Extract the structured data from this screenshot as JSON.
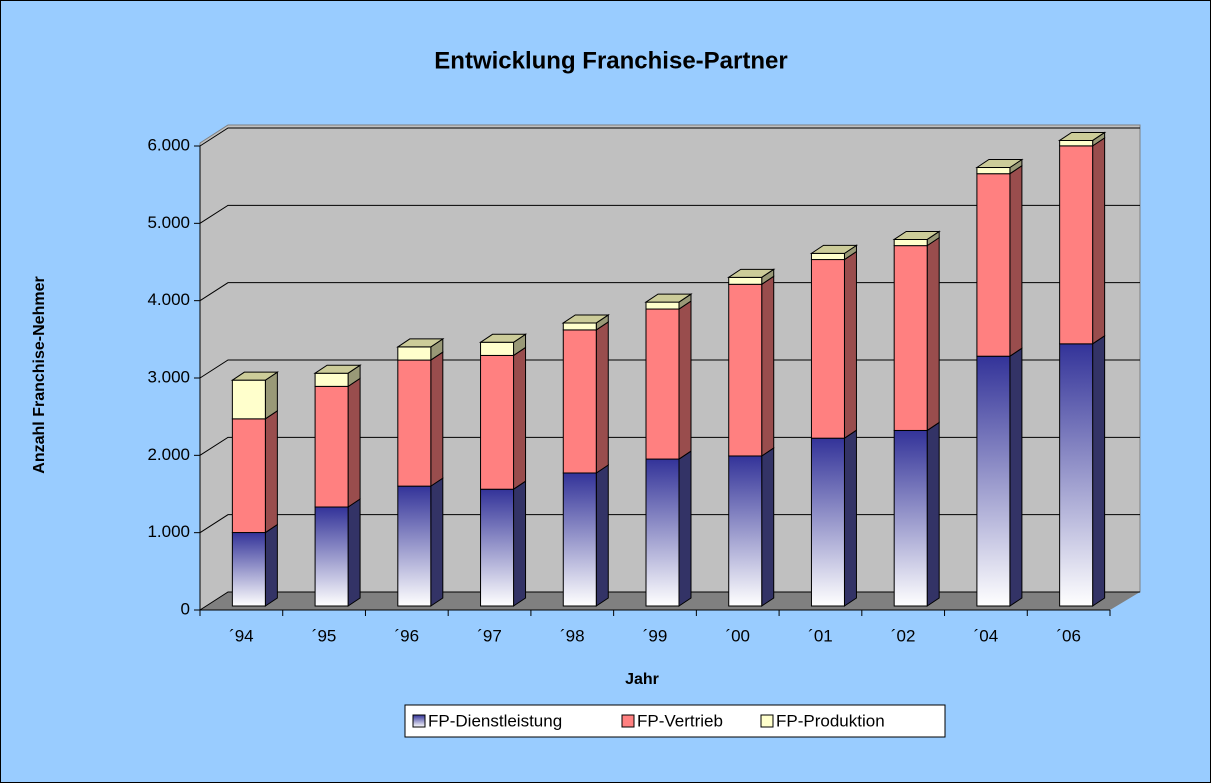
{
  "chart_data": {
    "type": "stacked_bar_3d",
    "title": "Entwicklung Franchise-Partner",
    "x_label": "Jahr",
    "y_label": "Anzahl Franchise-Nehmer",
    "categories": [
      "´94",
      "´95",
      "´96",
      "´97",
      "´98",
      "´99",
      "´00",
      "´01",
      "´02",
      "´04",
      "´06"
    ],
    "series": [
      {
        "name": "FP-Dienstleistung",
        "color": "#333399",
        "values": [
          950,
          1280,
          1550,
          1510,
          1720,
          1900,
          1940,
          2170,
          2270,
          3230,
          3390
        ]
      },
      {
        "name": "FP-Vertrieb",
        "color": "#ff8080",
        "values": [
          1470,
          1560,
          1630,
          1730,
          1850,
          1940,
          2220,
          2310,
          2390,
          2360,
          2560
        ]
      },
      {
        "name": "FP-Produktion",
        "color": "#ffffcc",
        "values": [
          500,
          170,
          170,
          170,
          90,
          90,
          90,
          80,
          80,
          80,
          70
        ]
      }
    ],
    "ylim": [
      0,
      6000
    ],
    "yticks": [
      0,
      {
        "value": 1000,
        "label": "1.000"
      },
      {
        "value": 2000,
        "label": "2.000"
      },
      {
        "value": 3000,
        "label": "3.000"
      },
      {
        "value": 4000,
        "label": "4.000"
      },
      {
        "value": 5000,
        "label": "5.000"
      },
      {
        "value": 6000,
        "label": "6.000"
      }
    ],
    "grid": true,
    "legend": "bottom"
  }
}
